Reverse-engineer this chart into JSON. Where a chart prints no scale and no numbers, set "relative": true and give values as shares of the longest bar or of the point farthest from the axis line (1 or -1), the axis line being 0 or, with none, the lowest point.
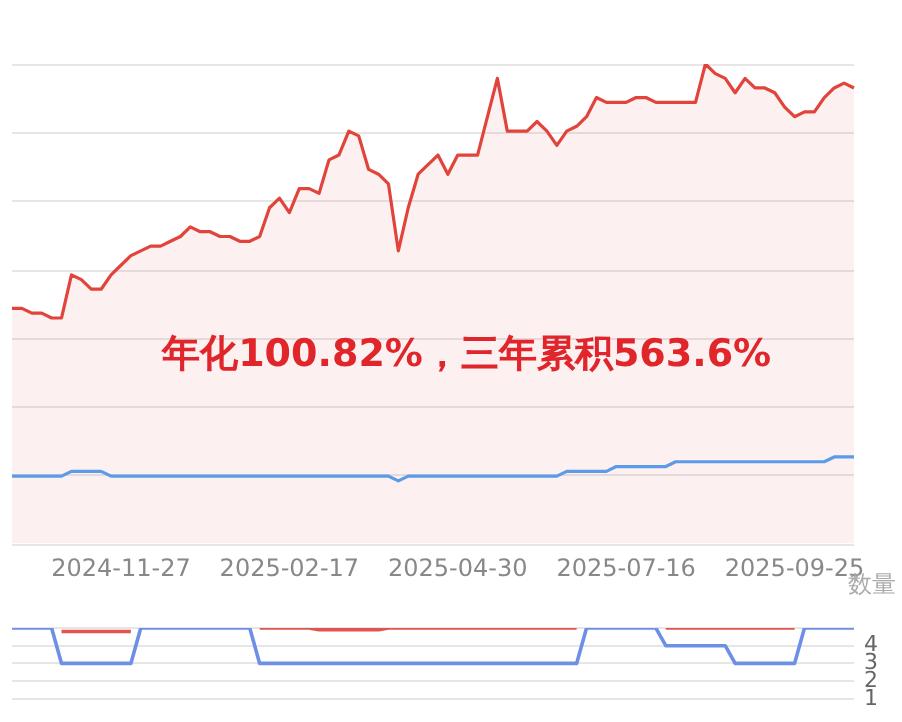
{
  "chart_data": [
    {
      "type": "line",
      "relative": true,
      "grid": "y",
      "categories": [
        null,
        null,
        null,
        null,
        null,
        null,
        null,
        null,
        null,
        null,
        null,
        "2024-11-27",
        null,
        null,
        null,
        null,
        null,
        null,
        null,
        null,
        null,
        null,
        null,
        null,
        null,
        null,
        null,
        null,
        "2025-02-17",
        null,
        null,
        null,
        null,
        null,
        null,
        null,
        null,
        null,
        null,
        null,
        null,
        null,
        null,
        null,
        null,
        "2025-04-30",
        null,
        null,
        null,
        null,
        null,
        null,
        null,
        null,
        null,
        null,
        null,
        null,
        null,
        null,
        null,
        null,
        "2025-07-16",
        null,
        null,
        null,
        null,
        null,
        null,
        null,
        null,
        null,
        null,
        null,
        null,
        null,
        null,
        null,
        null,
        "2025-09-25",
        null,
        null,
        null,
        null,
        null,
        null
      ],
      "series": [
        {
          "type": "area",
          "color": "#e0443a",
          "values": [
            0.49,
            0.49,
            0.48,
            0.48,
            0.47,
            0.47,
            0.56,
            0.55,
            0.53,
            0.53,
            0.56,
            0.58,
            0.6,
            0.61,
            0.62,
            0.62,
            0.63,
            0.64,
            0.66,
            0.65,
            0.65,
            0.64,
            0.64,
            0.63,
            0.63,
            0.64,
            0.7,
            0.72,
            0.69,
            0.74,
            0.74,
            0.73,
            0.8,
            0.81,
            0.86,
            0.85,
            0.78,
            0.77,
            0.75,
            0.61,
            0.7,
            0.77,
            0.79,
            0.81,
            0.77,
            0.81,
            0.81,
            0.81,
            0.89,
            0.97,
            0.86,
            0.86,
            0.86,
            0.88,
            0.86,
            0.83,
            0.86,
            0.87,
            0.89,
            0.93,
            0.92,
            0.92,
            0.92,
            0.93,
            0.93,
            0.92,
            0.92,
            0.92,
            0.92,
            0.92,
            1,
            0.98,
            0.97,
            0.94,
            0.97,
            0.95,
            0.95,
            0.94,
            0.91,
            0.89,
            0.9,
            0.9,
            0.93,
            0.95,
            0.96,
            0.95
          ]
        },
        {
          "type": "line",
          "color": "#5b9be8",
          "values": [
            0.14,
            0.14,
            0.14,
            0.14,
            0.14,
            0.14,
            0.15,
            0.15,
            0.15,
            0.15,
            0.14,
            0.14,
            0.14,
            0.14,
            0.14,
            0.14,
            0.14,
            0.14,
            0.14,
            0.14,
            0.14,
            0.14,
            0.14,
            0.14,
            0.14,
            0.14,
            0.14,
            0.14,
            0.14,
            0.14,
            0.14,
            0.14,
            0.14,
            0.14,
            0.14,
            0.14,
            0.14,
            0.14,
            0.14,
            0.13,
            0.14,
            0.14,
            0.14,
            0.14,
            0.14,
            0.14,
            0.14,
            0.14,
            0.14,
            0.14,
            0.14,
            0.14,
            0.14,
            0.14,
            0.14,
            0.14,
            0.15,
            0.15,
            0.15,
            0.15,
            0.15,
            0.16,
            0.16,
            0.16,
            0.16,
            0.16,
            0.16,
            0.17,
            0.17,
            0.17,
            0.17,
            0.17,
            0.17,
            0.17,
            0.17,
            0.17,
            0.17,
            0.17,
            0.17,
            0.17,
            0.17,
            0.17,
            0.17,
            0.18,
            0.18,
            0.18
          ]
        }
      ],
      "annotations": [
        "年化100.82%，三年累积563.6%"
      ]
    },
    {
      "type": "step",
      "grid": "y",
      "ylabel": "数量",
      "ylim": [
        1,
        5
      ],
      "yticks": [
        1,
        2,
        3,
        4,
        {
          "value": 5,
          "label": null
        }
      ],
      "categories": [
        null,
        null,
        null,
        null,
        null,
        null,
        null,
        null,
        null,
        null,
        null,
        null,
        null,
        null,
        null,
        null,
        null,
        null,
        null,
        null,
        null,
        null,
        null,
        null,
        null,
        null,
        null,
        null,
        null,
        null,
        null,
        null,
        null,
        null,
        null,
        null,
        null,
        null,
        null,
        null,
        null,
        null,
        null,
        null,
        null,
        null,
        null,
        null,
        null,
        null,
        null,
        null,
        null,
        null,
        null,
        null,
        null,
        null,
        null,
        null,
        null,
        null,
        null,
        null,
        null,
        null,
        null,
        null,
        null,
        null,
        null,
        null,
        null,
        null,
        null,
        null,
        null,
        null,
        null,
        null,
        null,
        null,
        null,
        null,
        null,
        null
      ],
      "series": [
        {
          "color": "#e05550",
          "values": [
            null,
            null,
            null,
            null,
            null,
            4.8,
            4.8,
            4.8,
            4.8,
            4.8,
            4.8,
            4.8,
            4.8,
            null,
            null,
            null,
            null,
            null,
            null,
            null,
            null,
            null,
            null,
            null,
            null,
            5,
            5,
            5,
            5,
            5,
            5,
            4.9,
            4.9,
            4.9,
            4.9,
            4.9,
            4.9,
            4.9,
            5,
            5,
            5,
            5,
            5,
            5,
            5,
            5,
            5,
            5,
            5,
            5,
            5,
            5,
            5,
            5,
            5,
            5,
            5,
            5,
            null,
            null,
            null,
            null,
            null,
            null,
            null,
            null,
            5,
            5,
            5,
            5,
            5,
            5,
            5,
            5,
            5,
            5,
            5,
            5,
            5,
            5,
            null,
            null,
            null,
            null,
            null,
            null
          ]
        },
        {
          "color": "#6d8fe6",
          "values": [
            5,
            5,
            5,
            5,
            5,
            3,
            3,
            3,
            3,
            3,
            3,
            3,
            3,
            5,
            5,
            5,
            5,
            5,
            5,
            5,
            5,
            5,
            5,
            5,
            5,
            3,
            3,
            3,
            3,
            3,
            3,
            3,
            3,
            3,
            3,
            3,
            3,
            3,
            3,
            3,
            3,
            3,
            3,
            3,
            3,
            3,
            3,
            3,
            3,
            3,
            3,
            3,
            3,
            3,
            3,
            3,
            3,
            3,
            5,
            5,
            5,
            5,
            5,
            5,
            5,
            5,
            4,
            4,
            4,
            4,
            4,
            4,
            4,
            3,
            3,
            3,
            3,
            3,
            3,
            3,
            5,
            5,
            5,
            5,
            5,
            5
          ]
        }
      ]
    }
  ]
}
